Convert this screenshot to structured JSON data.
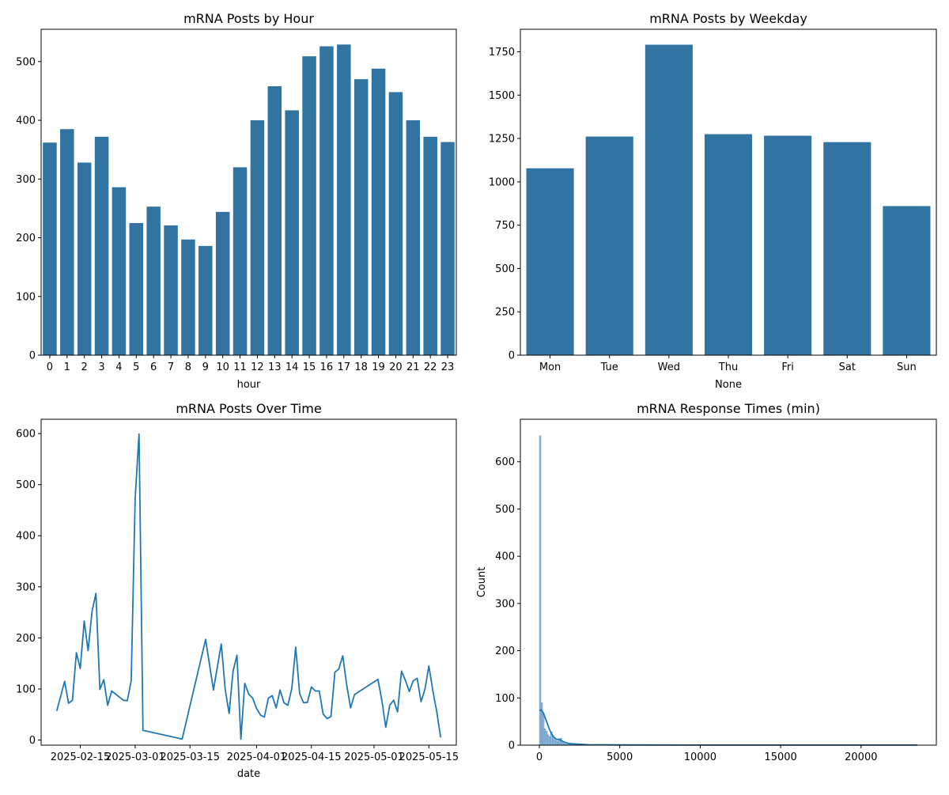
{
  "colors": {
    "bar": "#3274a1",
    "line": "#1f77b4",
    "hist": "#5b8fbd"
  },
  "chart_data": [
    {
      "type": "bar",
      "title": "mRNA Posts by Hour",
      "xlabel": "hour",
      "ylabel": "",
      "categories": [
        "0",
        "1",
        "2",
        "3",
        "4",
        "5",
        "6",
        "7",
        "8",
        "9",
        "10",
        "11",
        "12",
        "13",
        "14",
        "15",
        "16",
        "17",
        "18",
        "19",
        "20",
        "21",
        "22",
        "23"
      ],
      "values": [
        362,
        385,
        328,
        372,
        286,
        225,
        253,
        221,
        197,
        186,
        244,
        320,
        400,
        458,
        417,
        509,
        526,
        529,
        470,
        488,
        448,
        400,
        372,
        363
      ],
      "ylim": [
        0,
        555
      ],
      "yticks": [
        0,
        100,
        200,
        300,
        400,
        500
      ]
    },
    {
      "type": "bar",
      "title": "mRNA Posts by Weekday",
      "xlabel": "None",
      "ylabel": "",
      "categories": [
        "Mon",
        "Tue",
        "Wed",
        "Thu",
        "Fri",
        "Sat",
        "Sun"
      ],
      "values": [
        1078,
        1261,
        1791,
        1275,
        1266,
        1229,
        860
      ],
      "ylim": [
        0,
        1880
      ],
      "yticks": [
        0,
        250,
        500,
        750,
        1000,
        1250,
        1500,
        1750
      ]
    },
    {
      "type": "line",
      "title": "mRNA Posts Over Time",
      "xlabel": "date",
      "ylabel": "",
      "x": [
        "2025-02-09",
        "2025-02-11",
        "2025-02-12",
        "2025-02-13",
        "2025-02-14",
        "2025-02-15",
        "2025-02-16",
        "2025-02-17",
        "2025-02-18",
        "2025-02-19",
        "2025-02-20",
        "2025-02-21",
        "2025-02-22",
        "2025-02-23",
        "2025-02-26",
        "2025-02-27",
        "2025-02-28",
        "2025-03-01",
        "2025-03-02",
        "2025-03-03",
        "2025-03-13",
        "2025-03-19",
        "2025-03-21",
        "2025-03-23",
        "2025-03-24",
        "2025-03-25",
        "2025-03-26",
        "2025-03-27",
        "2025-03-28",
        "2025-03-29",
        "2025-03-30",
        "2025-03-31",
        "2025-04-01",
        "2025-04-02",
        "2025-04-03",
        "2025-04-04",
        "2025-04-05",
        "2025-04-06",
        "2025-04-07",
        "2025-04-08",
        "2025-04-09",
        "2025-04-10",
        "2025-04-11",
        "2025-04-12",
        "2025-04-13",
        "2025-04-14",
        "2025-04-15",
        "2025-04-16",
        "2025-04-17",
        "2025-04-18",
        "2025-04-19",
        "2025-04-20",
        "2025-04-21",
        "2025-04-22",
        "2025-04-23",
        "2025-04-24",
        "2025-04-25",
        "2025-04-26",
        "2025-05-02",
        "2025-05-03",
        "2025-05-04",
        "2025-05-05",
        "2025-05-06",
        "2025-05-07",
        "2025-05-08",
        "2025-05-09",
        "2025-05-10",
        "2025-05-11",
        "2025-05-12",
        "2025-05-13",
        "2025-05-14",
        "2025-05-15",
        "2025-05-16",
        "2025-05-17",
        "2025-05-18"
      ],
      "values": [
        57,
        115,
        72,
        78,
        171,
        140,
        233,
        175,
        252,
        287,
        99,
        118,
        68,
        96,
        78,
        77,
        116,
        473,
        599,
        19,
        2,
        197,
        98,
        188,
        99,
        52,
        135,
        166,
        2,
        111,
        90,
        82,
        62,
        49,
        45,
        82,
        87,
        63,
        98,
        73,
        68,
        101,
        182,
        91,
        73,
        74,
        104,
        96,
        96,
        51,
        42,
        46,
        133,
        139,
        165,
        109,
        63,
        89,
        119,
        77,
        25,
        68,
        78,
        55,
        135,
        117,
        95,
        116,
        121,
        75,
        100,
        145,
        97,
        56,
        5
      ],
      "ylim": [
        -10,
        628
      ],
      "yticks": [
        0,
        100,
        200,
        300,
        400,
        500,
        600
      ],
      "xticks": [
        "2025-02-15",
        "2025-03-01",
        "2025-03-15",
        "2025-04-01",
        "2025-04-15",
        "2025-05-01",
        "2025-05-15"
      ]
    },
    {
      "type": "histogram",
      "title": "mRNA Response Times (min)",
      "xlabel": "",
      "ylabel": "Count",
      "bin_width": 100,
      "bins": [
        {
          "x0": 0,
          "count": 655
        },
        {
          "x0": 100,
          "count": 90
        },
        {
          "x0": 200,
          "count": 68
        },
        {
          "x0": 300,
          "count": 35
        },
        {
          "x0": 400,
          "count": 30
        },
        {
          "x0": 500,
          "count": 22
        },
        {
          "x0": 600,
          "count": 18
        },
        {
          "x0": 700,
          "count": 28
        },
        {
          "x0": 800,
          "count": 20
        },
        {
          "x0": 900,
          "count": 12
        },
        {
          "x0": 1000,
          "count": 10
        },
        {
          "x0": 1100,
          "count": 8
        },
        {
          "x0": 1200,
          "count": 14
        },
        {
          "x0": 1300,
          "count": 15
        },
        {
          "x0": 1400,
          "count": 6
        },
        {
          "x0": 1500,
          "count": 4
        },
        {
          "x0": 1600,
          "count": 3
        },
        {
          "x0": 1700,
          "count": 2
        },
        {
          "x0": 1800,
          "count": 2
        },
        {
          "x0": 1900,
          "count": 1
        },
        {
          "x0": 2000,
          "count": 1
        }
      ],
      "kde": [
        [
          0,
          73
        ],
        [
          100,
          75
        ],
        [
          200,
          71
        ],
        [
          300,
          64
        ],
        [
          400,
          55
        ],
        [
          500,
          45
        ],
        [
          600,
          36
        ],
        [
          700,
          28
        ],
        [
          800,
          22
        ],
        [
          900,
          17
        ],
        [
          1000,
          14
        ],
        [
          1100,
          12
        ],
        [
          1200,
          12
        ],
        [
          1300,
          11
        ],
        [
          1400,
          9
        ],
        [
          1600,
          6
        ],
        [
          1800,
          4
        ],
        [
          2000,
          3
        ],
        [
          2500,
          2
        ],
        [
          3000,
          1
        ],
        [
          5000,
          0.5
        ],
        [
          10000,
          0.2
        ],
        [
          15000,
          0.1
        ],
        [
          20000,
          0.1
        ],
        [
          23500,
          0.1
        ]
      ],
      "xlim": [
        -1180,
        24680
      ],
      "ylim": [
        0,
        690
      ],
      "xticks": [
        0,
        5000,
        10000,
        15000,
        20000
      ],
      "yticks": [
        0,
        100,
        200,
        300,
        400,
        500,
        600
      ]
    }
  ]
}
